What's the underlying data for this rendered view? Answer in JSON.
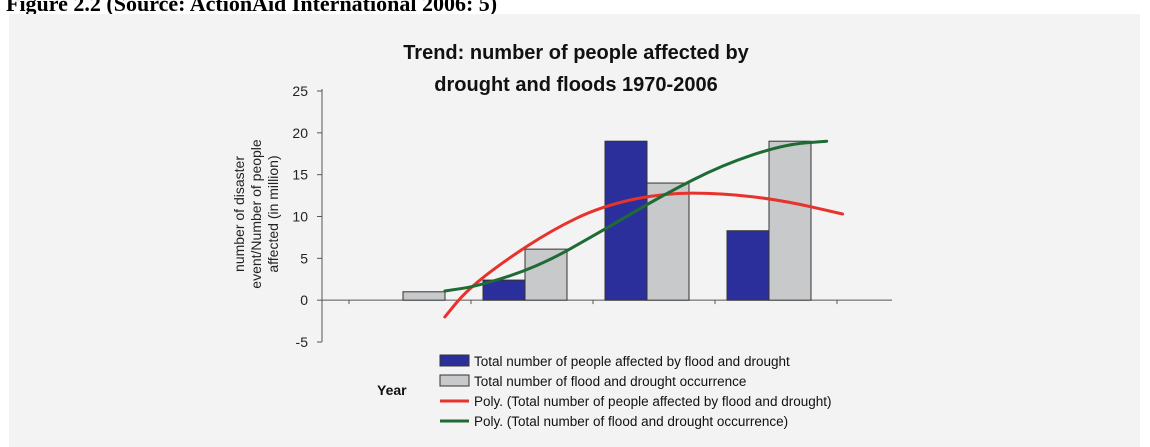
{
  "figure_caption": "Figure 2.2 (Source: ActionAid International 2006: 5)",
  "colors": {
    "affected_bar": "#2b2f9c",
    "occurrence_bar": "#c8c9cb",
    "poly_affected": "#e8322c",
    "poly_occurrence": "#1f6b35",
    "panel_bg": "#f3f3f3"
  },
  "chart_data": {
    "type": "bar",
    "title_lines": [
      "Trend: number of people affected by",
      "drought and floods 1970-2006"
    ],
    "ylabel_lines": [
      "number of disaster",
      "event/Number of people",
      "affected (in million)"
    ],
    "xlabel": "Year",
    "ylim": [
      -5,
      25
    ],
    "yticks": [
      -5,
      0,
      5,
      10,
      15,
      20,
      25
    ],
    "categories": [
      "",
      "",
      "",
      ""
    ],
    "series": [
      {
        "name": "Total number of people affected by flood and drought",
        "kind": "bar",
        "values": [
          0,
          2.4,
          19,
          8.3
        ]
      },
      {
        "name": "Total number of flood and drought occurrence",
        "kind": "bar",
        "values": [
          1,
          6.1,
          14,
          19
        ]
      },
      {
        "name": "Poly. (Total number of people affected by flood and drought)",
        "kind": "line",
        "x": [
          0.72,
          0.9,
          1.2,
          1.6,
          2.0,
          2.5,
          3.0,
          3.5,
          3.98
        ],
        "values": [
          -2,
          1.2,
          4.6,
          8.4,
          11.2,
          12.8,
          12.8,
          11.9,
          10.3
        ]
      },
      {
        "name": "Poly. (Total number of flood and drought occurrence)",
        "kind": "line",
        "x": [
          0.72,
          1.0,
          1.5,
          2.0,
          2.5,
          3.0,
          3.5,
          3.85
        ],
        "values": [
          1.1,
          1.7,
          4.1,
          8.2,
          12.5,
          16.2,
          18.6,
          19
        ]
      }
    ],
    "grid": false,
    "legend_position": "bottom"
  }
}
